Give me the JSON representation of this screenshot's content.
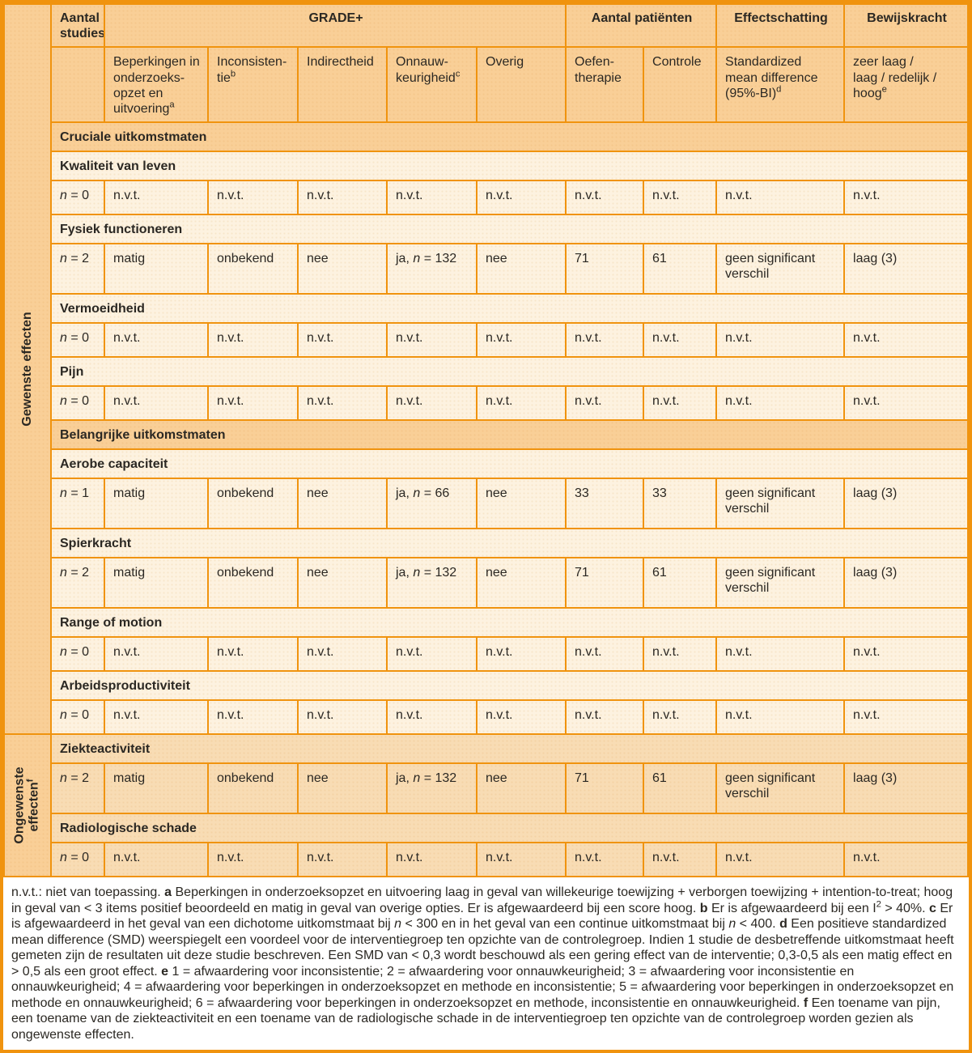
{
  "palette": {
    "border": "#f0930e",
    "header_bg": "#f9cf97",
    "row_bg": "#fdf2e0",
    "row_bg_alt": "#f8dcb4",
    "footnote_bg": "#ffffff",
    "text": "#2b2823"
  },
  "sidebar": {
    "top": "Gewenste effecten",
    "bottom": "Ongewenste\neffecten^f^"
  },
  "header": {
    "groups": {
      "aantal_studies": "Aantal\nstudies",
      "grade": "GRADE+",
      "aantal_patienten": "Aantal patiënten",
      "effectschatting": "Effectschatting",
      "bewijskracht": "Bewijskracht"
    },
    "sub": {
      "beperkingen": "Beperkingen in\nonderzoeks-\nopzet en\nuitvoering^a^",
      "inconsistentie": "Inconsisten-\ntie^b^",
      "indirectheid": "Indirectheid",
      "onnauwkeurigheid": "Onnauw-\nkeurigheid^c^",
      "overig": "Overig",
      "oefentherapie": "Oefen-\ntherapie",
      "controle": "Controle",
      "smd": "Standardized\nmean difference\n(95%-BI)^d^",
      "bewijs_schaal": "zeer laag /\nlaag / redelijk /\nhoog^e^"
    }
  },
  "rows": [
    {
      "type": "section",
      "zone": "g",
      "label": "Cruciale uitkomstmaten"
    },
    {
      "type": "outcome",
      "zone": "g",
      "label": "Kwaliteit van leven"
    },
    {
      "type": "data",
      "zone": "g",
      "tall": false,
      "cells": [
        "*n* = 0",
        "n.v.t.",
        "n.v.t.",
        "n.v.t.",
        "n.v.t.",
        "n.v.t.",
        "n.v.t.",
        "n.v.t.",
        "n.v.t.",
        "n.v.t."
      ]
    },
    {
      "type": "outcome",
      "zone": "g",
      "label": "Fysiek functioneren"
    },
    {
      "type": "data",
      "zone": "g",
      "tall": true,
      "cells": [
        "*n* = 2",
        "matig",
        "onbekend",
        "nee",
        "ja, *n* = 132",
        "nee",
        "71",
        "61",
        "geen significant verschil",
        "laag (3)"
      ]
    },
    {
      "type": "outcome",
      "zone": "g",
      "label": "Vermoeidheid"
    },
    {
      "type": "data",
      "zone": "g",
      "tall": false,
      "cells": [
        "*n* = 0",
        "n.v.t.",
        "n.v.t.",
        "n.v.t.",
        "n.v.t.",
        "n.v.t.",
        "n.v.t.",
        "n.v.t.",
        "n.v.t.",
        "n.v.t."
      ]
    },
    {
      "type": "outcome",
      "zone": "g",
      "label": "Pijn"
    },
    {
      "type": "data",
      "zone": "g",
      "tall": false,
      "cells": [
        "*n* = 0",
        "n.v.t.",
        "n.v.t.",
        "n.v.t.",
        "n.v.t.",
        "n.v.t.",
        "n.v.t.",
        "n.v.t.",
        "n.v.t.",
        "n.v.t."
      ]
    },
    {
      "type": "section",
      "zone": "g",
      "label": "Belangrijke uitkomstmaten"
    },
    {
      "type": "outcome",
      "zone": "g",
      "label": "Aerobe capaciteit"
    },
    {
      "type": "data",
      "zone": "g",
      "tall": true,
      "cells": [
        "*n* = 1",
        "matig",
        "onbekend",
        "nee",
        "ja, *n* = 66",
        "nee",
        "33",
        "33",
        "geen significant verschil",
        "laag (3)"
      ]
    },
    {
      "type": "outcome",
      "zone": "g",
      "label": "Spierkracht"
    },
    {
      "type": "data",
      "zone": "g",
      "tall": true,
      "cells": [
        "*n* = 2",
        "matig",
        "onbekend",
        "nee",
        "ja, *n* = 132",
        "nee",
        "71",
        "61",
        "geen significant verschil",
        "laag (3)"
      ]
    },
    {
      "type": "outcome",
      "zone": "g",
      "label": "Range of motion"
    },
    {
      "type": "data",
      "zone": "g",
      "tall": false,
      "cells": [
        "*n* = 0",
        "n.v.t.",
        "n.v.t.",
        "n.v.t.",
        "n.v.t.",
        "n.v.t.",
        "n.v.t.",
        "n.v.t.",
        "n.v.t.",
        "n.v.t."
      ]
    },
    {
      "type": "outcome",
      "zone": "g",
      "label": "Arbeidsproductiviteit"
    },
    {
      "type": "data",
      "zone": "g",
      "tall": false,
      "cells": [
        "*n* = 0",
        "n.v.t.",
        "n.v.t.",
        "n.v.t.",
        "n.v.t.",
        "n.v.t.",
        "n.v.t.",
        "n.v.t.",
        "n.v.t.",
        "n.v.t."
      ]
    },
    {
      "type": "outcome",
      "zone": "o",
      "label": "Ziekteactiviteit"
    },
    {
      "type": "data",
      "zone": "o",
      "tall": true,
      "cells": [
        "*n* = 2",
        "matig",
        "onbekend",
        "nee",
        "ja, *n* = 132",
        "nee",
        "71",
        "61",
        "geen significant verschil",
        "laag (3)"
      ]
    },
    {
      "type": "outcome",
      "zone": "o",
      "label": "Radiologische schade"
    },
    {
      "type": "data",
      "zone": "o",
      "tall": false,
      "cells": [
        "*n* = 0",
        "n.v.t.",
        "n.v.t.",
        "n.v.t.",
        "n.v.t.",
        "n.v.t.",
        "n.v.t.",
        "n.v.t.",
        "n.v.t.",
        "n.v.t."
      ]
    }
  ],
  "footnote": "n.v.t.: niet van toepassing. **a** Beperkingen in onderzoeksopzet en uitvoering laag in geval van willekeurige toewijzing + verborgen toewijzing + intention-to-treat; hoog in geval van < 3 items positief beoordeeld en matig in geval van overige opties. Er is afgewaardeerd bij een score hoog. **b** Er is afgewaardeerd bij een I^2^ > 40%. **c** Er is afgewaardeerd in het geval van een dichotome uitkomstmaat bij *n* < 300 en in het geval van een continue uitkomstmaat bij *n* < 400. **d** Een positieve standardized mean difference (SMD) weerspiegelt een voordeel voor de interventiegroep ten opzichte van de controlegroep. Indien 1 studie de desbetreffende uitkomstmaat heeft gemeten zijn de resultaten uit deze studie beschreven. Een SMD van < 0,3 wordt beschouwd als een gering effect van de interventie; 0,3-0,5 als een matig effect en > 0,5 als een groot effect. **e** 1 = afwaardering voor inconsistentie; 2 = afwaardering voor onnauwkeurigheid; 3 = afwaardering voor inconsistentie en onnauwkeurigheid; 4 = afwaardering voor beperkingen in onderzoeksopzet en methode en inconsistentie; 5 = afwaardering voor beperkingen in onderzoeksopzet en methode en onnauwkeurigheid; 6 = afwaardering voor beperkingen in onderzoeksopzet en methode, inconsistentie en onnauwkeurigheid. **f** Een toename van pijn, een toename van de ziekteactiviteit en een toename van de radiologische schade in de interventiegroep ten opzichte van de controlegroep worden gezien als ongewenste effecten."
}
